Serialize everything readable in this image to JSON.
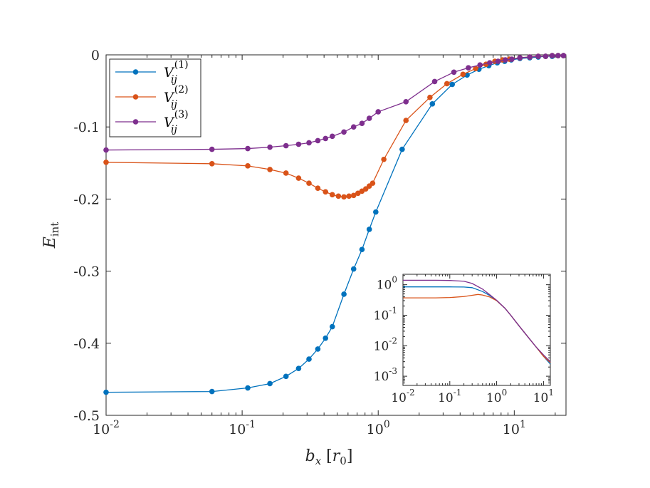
{
  "chart_data": [
    {
      "type": "line",
      "xscale": "log",
      "xlabel": "b_x [r_0]",
      "ylabel": "E_int",
      "xlim": [
        0.01,
        24
      ],
      "ylim": [
        -0.5,
        0
      ],
      "x_ticks": [
        {
          "value": 0.01,
          "base": "10",
          "exp": "-2"
        },
        {
          "value": 0.1,
          "base": "10",
          "exp": "-1"
        },
        {
          "value": 1,
          "base": "10",
          "exp": "0"
        },
        {
          "value": 10,
          "base": "10",
          "exp": "1"
        }
      ],
      "y_ticks": [
        {
          "value": 0,
          "label": "0"
        },
        {
          "value": -0.1,
          "label": "-0.1"
        },
        {
          "value": -0.2,
          "label": "-0.2"
        },
        {
          "value": -0.3,
          "label": "-0.3"
        },
        {
          "value": -0.4,
          "label": "-0.4"
        },
        {
          "value": -0.5,
          "label": "-0.5"
        }
      ],
      "legend_position": "top-left",
      "series": [
        {
          "name": "V_ij^(1)",
          "legend_base": "V",
          "legend_sub": "ij",
          "legend_sup": "(1)",
          "color": "#0072BD",
          "x": [
            0.01,
            0.06,
            0.11,
            0.16,
            0.21,
            0.26,
            0.31,
            0.36,
            0.41,
            0.46,
            0.56,
            0.66,
            0.76,
            0.86,
            0.96,
            1.5,
            2.5,
            3.5,
            4.5,
            5.5,
            6.5,
            7.5,
            8.5,
            9.5,
            11,
            13,
            15,
            17,
            19,
            21,
            23
          ],
          "y": [
            -0.468,
            -0.467,
            -0.462,
            -0.456,
            -0.446,
            -0.435,
            -0.422,
            -0.408,
            -0.393,
            -0.377,
            -0.332,
            -0.297,
            -0.27,
            -0.242,
            -0.218,
            -0.131,
            -0.068,
            -0.041,
            -0.028,
            -0.02,
            -0.015,
            -0.011,
            -0.009,
            -0.007,
            -0.005,
            -0.004,
            -0.003,
            -0.002,
            -0.002,
            -0.001,
            -0.001
          ]
        },
        {
          "name": "V_ij^(2)",
          "legend_base": "V",
          "legend_sub": "ij",
          "legend_sup": "(2)",
          "color": "#D95319",
          "x": [
            0.01,
            0.06,
            0.11,
            0.16,
            0.21,
            0.26,
            0.31,
            0.36,
            0.41,
            0.46,
            0.51,
            0.56,
            0.61,
            0.66,
            0.71,
            0.76,
            0.81,
            0.86,
            0.91,
            1.1,
            1.6,
            2.4,
            3.2,
            4.2,
            5.2,
            6.2,
            7.2,
            8.2,
            9.2,
            11,
            13,
            15,
            17,
            19,
            21,
            23
          ],
          "y": [
            -0.149,
            -0.151,
            -0.154,
            -0.159,
            -0.164,
            -0.171,
            -0.178,
            -0.185,
            -0.19,
            -0.194,
            -0.196,
            -0.197,
            -0.196,
            -0.195,
            -0.192,
            -0.189,
            -0.186,
            -0.182,
            -0.178,
            -0.145,
            -0.091,
            -0.059,
            -0.04,
            -0.027,
            -0.019,
            -0.013,
            -0.009,
            -0.007,
            -0.006,
            -0.004,
            -0.003,
            -0.002,
            -0.002,
            -0.001,
            -0.001,
            -0.001
          ]
        },
        {
          "name": "V_ij^(3)",
          "legend_base": "V",
          "legend_sub": "ij",
          "legend_sup": "(3)",
          "color": "#7E2F8E",
          "x": [
            0.01,
            0.06,
            0.11,
            0.16,
            0.21,
            0.26,
            0.31,
            0.36,
            0.41,
            0.46,
            0.56,
            0.66,
            0.76,
            0.86,
            1.0,
            1.6,
            2.6,
            3.6,
            4.6,
            5.6,
            6.6,
            7.6,
            8.6,
            9.6,
            11,
            13,
            15,
            17,
            19,
            21,
            23
          ],
          "y": [
            -0.132,
            -0.131,
            -0.13,
            -0.128,
            -0.126,
            -0.124,
            -0.122,
            -0.119,
            -0.116,
            -0.113,
            -0.107,
            -0.1,
            -0.095,
            -0.088,
            -0.079,
            -0.065,
            -0.037,
            -0.024,
            -0.018,
            -0.014,
            -0.011,
            -0.009,
            -0.007,
            -0.006,
            -0.004,
            -0.003,
            -0.002,
            -0.002,
            -0.001,
            -0.001,
            -0.001
          ]
        }
      ]
    },
    {
      "type": "line",
      "xscale": "log",
      "yscale": "log",
      "role": "inset",
      "xlim": [
        0.01,
        14
      ],
      "ylim": [
        0.0005,
        2.2
      ],
      "x_ticks": [
        {
          "value": 0.01,
          "base": "10",
          "exp": "-2"
        },
        {
          "value": 0.1,
          "base": "10",
          "exp": "-1"
        },
        {
          "value": 1,
          "base": "10",
          "exp": "0"
        },
        {
          "value": 10,
          "base": "10",
          "exp": "1"
        }
      ],
      "y_ticks": [
        {
          "value": 1,
          "base": "10",
          "exp": "0"
        },
        {
          "value": 0.1,
          "base": "10",
          "exp": "-1"
        },
        {
          "value": 0.01,
          "base": "10",
          "exp": "-2"
        },
        {
          "value": 0.001,
          "base": "10",
          "exp": "-3"
        }
      ],
      "series": [
        {
          "name": "V_ij^(1)",
          "color": "#0072BD",
          "x": [
            0.01,
            0.05,
            0.1,
            0.2,
            0.3,
            0.5,
            0.7,
            1.0,
            1.5,
            2,
            3,
            5,
            7,
            10,
            14
          ],
          "y": [
            0.85,
            0.85,
            0.85,
            0.84,
            0.8,
            0.6,
            0.45,
            0.3,
            0.17,
            0.1,
            0.045,
            0.017,
            0.009,
            0.0045,
            0.0025
          ]
        },
        {
          "name": "V_ij^(2)",
          "color": "#D95319",
          "x": [
            0.01,
            0.05,
            0.1,
            0.2,
            0.3,
            0.4,
            0.5,
            0.7,
            1.0,
            1.5,
            2,
            3,
            5,
            7,
            10,
            14
          ],
          "y": [
            0.37,
            0.37,
            0.38,
            0.41,
            0.45,
            0.48,
            0.46,
            0.4,
            0.3,
            0.17,
            0.1,
            0.045,
            0.017,
            0.009,
            0.0045,
            0.0028
          ]
        },
        {
          "name": "V_ij^(3)",
          "color": "#7E2F8E",
          "x": [
            0.01,
            0.05,
            0.1,
            0.2,
            0.3,
            0.5,
            0.7,
            1.0,
            1.5,
            2,
            3,
            5,
            7,
            10,
            14
          ],
          "y": [
            1.4,
            1.4,
            1.38,
            1.3,
            1.1,
            0.72,
            0.48,
            0.31,
            0.17,
            0.1,
            0.045,
            0.017,
            0.009,
            0.005,
            0.003
          ]
        }
      ]
    }
  ]
}
